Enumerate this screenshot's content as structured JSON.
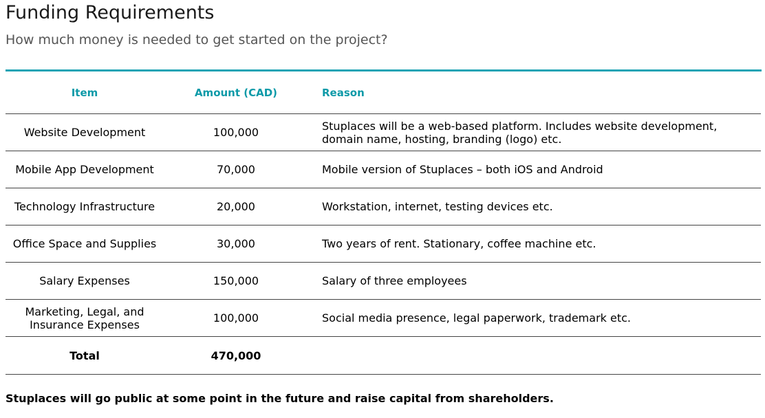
{
  "header": {
    "title": "Funding Requirements",
    "subtitle": "How much money is needed to get started on the project?"
  },
  "table": {
    "headers": {
      "item": "Item",
      "amount": "Amount (CAD)",
      "reason": "Reason"
    },
    "rows": [
      {
        "item": "Website Development",
        "amount": "100,000",
        "reason": "Stuplaces will be a web-based platform. Includes website development, domain name, hosting, branding (logo) etc."
      },
      {
        "item": "Mobile App Development",
        "amount": "70,000",
        "reason": "Mobile version of Stuplaces – both iOS and Android"
      },
      {
        "item": "Technology Infrastructure",
        "amount": "20,000",
        "reason": "Workstation, internet, testing devices etc."
      },
      {
        "item": "Office Space and Supplies",
        "amount": "30,000",
        "reason": "Two years of rent. Stationary, coffee machine etc."
      },
      {
        "item": "Salary Expenses",
        "amount": "150,000",
        "reason": "Salary of three employees"
      },
      {
        "item": "Marketing, Legal, and Insurance Expenses",
        "amount": "100,000",
        "reason": "Social media presence, legal paperwork, trademark etc."
      }
    ],
    "total": {
      "label": "Total",
      "amount": "470,000"
    }
  },
  "footer": {
    "note": "Stuplaces will go public at some point in the future and raise capital from shareholders."
  },
  "colors": {
    "accent": "#1ca3b4",
    "header_text": "#0d9aa8"
  }
}
